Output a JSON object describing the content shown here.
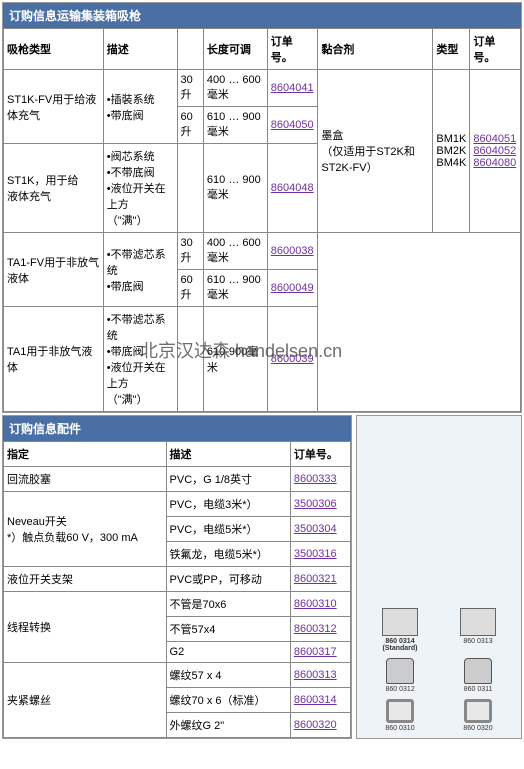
{
  "section1": {
    "title": "订购信息运输集装箱吸枪",
    "headers": [
      "吸枪类型",
      "描述",
      "长度可调",
      "订单号。",
      "黏合剂",
      "类型",
      "订单号。"
    ],
    "length_col_header": "",
    "rows": [
      {
        "type": "ST1K-FV用于给液体充气",
        "desc": "•插裝系统\n•带底阀",
        "sub": [
          {
            "len": "30升",
            "adj": "400 … 600毫米",
            "order": "8604041"
          },
          {
            "len": "60升",
            "adj": "610 … 900毫米",
            "order": "8604050"
          }
        ]
      },
      {
        "type": "ST1K，用于给\n液体充气",
        "desc": "•阀芯系统\n•不带底阀\n•液位开关在上方\n（\"满\"）",
        "sub": [
          {
            "len": "",
            "adj": "610 … 900毫米",
            "order": "8604048"
          }
        ]
      },
      {
        "type": "TA1-FV用于非放气液体",
        "desc": "•不带滤芯系统\n•带底阀",
        "sub": [
          {
            "len": "30升",
            "adj": "400 … 600毫米",
            "order": "8600038"
          },
          {
            "len": "60升",
            "adj": "610 … 900毫米",
            "order": "8600049"
          }
        ]
      },
      {
        "type": "TA1用于非放气液体",
        "desc": "•不带滤芯系统\n•带底阀\n•液位开关在上方\n（\"满\"）",
        "sub": [
          {
            "len": "",
            "adj": "610-900毫米",
            "order": "8600039"
          }
        ]
      }
    ],
    "adhesive": {
      "label": "墨盒\n（仅适用于ST2K和ST2K-FV）",
      "types": [
        "BM1K",
        "BM2K",
        "BM4K"
      ],
      "orders": [
        "8604051",
        "8604052",
        "8604080"
      ]
    }
  },
  "section2": {
    "title": "订购信息配件",
    "headers": [
      "指定",
      "描述",
      "订单号。"
    ],
    "rows": [
      {
        "spec": "回流胶塞",
        "desc": "PVC，G 1/8英寸",
        "order": "8600333"
      },
      {
        "spec_group": "Neveau开关\n*）触点负载60 V，300 mA",
        "items": [
          {
            "desc": "PVC，电缆3米*）",
            "order": "3500306"
          },
          {
            "desc": "PVC，电缆5米*）",
            "order": "3500304"
          },
          {
            "desc": "铁氟龙，电缆5米*）",
            "order": "3500316"
          }
        ]
      },
      {
        "spec": "液位开关支架",
        "desc": "PVC或PP，可移动",
        "order": "8600321"
      },
      {
        "spec_group": "线程转换",
        "items": [
          {
            "desc": "不管是70x6",
            "order": "8600310"
          },
          {
            "desc": "不管57x4",
            "order": "8600312"
          },
          {
            "desc": "G2",
            "order": "8600317"
          }
        ]
      },
      {
        "spec_group": "夹紧螺丝",
        "items": [
          {
            "desc": "螺纹57 x 4",
            "order": "8600313"
          },
          {
            "desc": "螺纹70 x 6（标准）",
            "order": "8600314"
          },
          {
            "desc": "外螺纹G 2\"",
            "order": "8600320"
          }
        ]
      }
    ]
  },
  "watermark": "北京汉达森 handelsen.cn",
  "diagrams": {
    "r1": [
      {
        "label": "860 0314\n(Standard)"
      },
      {
        "label": "860 0313"
      }
    ],
    "r2": [
      {
        "label": "860 0312"
      },
      {
        "label": "860 0311"
      }
    ],
    "r3": [
      {
        "label": "860 0310"
      },
      {
        "label": "860 0320"
      }
    ]
  }
}
